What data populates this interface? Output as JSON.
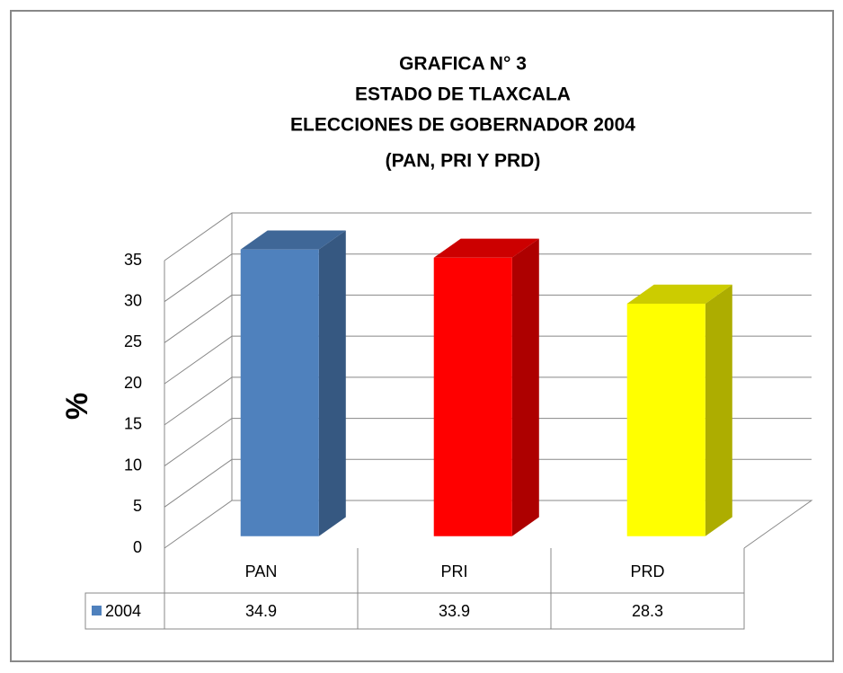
{
  "chart_data": {
    "type": "bar3d",
    "title": [
      "GRAFICA N° 3",
      "ESTADO DE TLAXCALA",
      "ELECCIONES DE GOBERNADOR 2004",
      "(PAN, PRI Y PRD)"
    ],
    "y_label": "%",
    "categories": [
      "PAN",
      "PRI",
      "PRD"
    ],
    "series": [
      {
        "name": "2004",
        "color": "#4f81bd",
        "colors": [
          "#4f81bd",
          "#ff0000",
          "#ffff00"
        ],
        "values": [
          34.9,
          33.9,
          28.3
        ]
      }
    ],
    "ylim": [
      0,
      35
    ],
    "yticks": [
      0,
      5,
      10,
      15,
      20,
      25,
      30,
      35
    ],
    "grid": true,
    "data_table": true
  }
}
